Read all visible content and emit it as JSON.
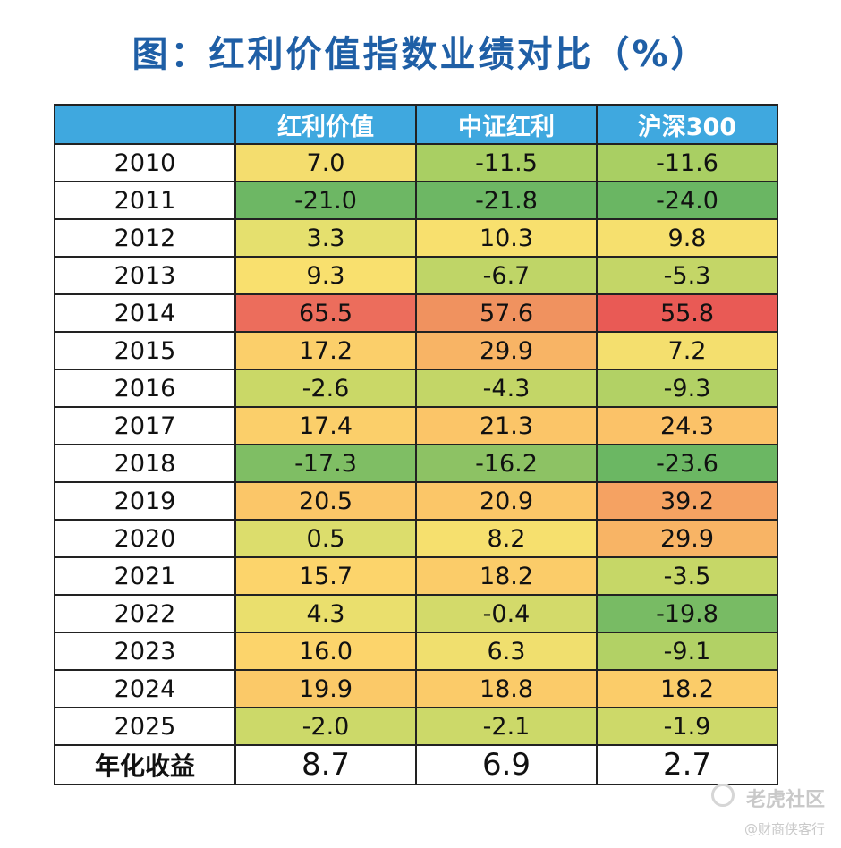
{
  "chart_data": {
    "type": "table",
    "title": "图：红利价值指数业绩对比（%）",
    "columns": [
      "",
      "红利价值",
      "中证红利",
      "沪深300"
    ],
    "rows": [
      {
        "year": "2010",
        "values": [
          "7.0",
          "-11.5",
          "-11.6"
        ],
        "colors": [
          "#f4dd6e",
          "#a9cf63",
          "#a9cf63"
        ]
      },
      {
        "year": "2011",
        "values": [
          "-21.0",
          "-21.8",
          "-24.0"
        ],
        "colors": [
          "#6db764",
          "#6db764",
          "#6ab663"
        ]
      },
      {
        "year": "2012",
        "values": [
          "3.3",
          "10.3",
          "9.8"
        ],
        "colors": [
          "#e5e06e",
          "#f8e06e",
          "#f6e06e"
        ]
      },
      {
        "year": "2013",
        "values": [
          "9.3",
          "-6.7",
          "-5.3"
        ],
        "colors": [
          "#f9e06e",
          "#bfd567",
          "#c4d667"
        ]
      },
      {
        "year": "2014",
        "values": [
          "65.5",
          "57.6",
          "55.8"
        ],
        "colors": [
          "#ec6d5c",
          "#f0925f",
          "#e95a55"
        ]
      },
      {
        "year": "2015",
        "values": [
          "17.2",
          "29.9",
          "7.2"
        ],
        "colors": [
          "#fbcf6a",
          "#f8b465",
          "#f4df6e"
        ]
      },
      {
        "year": "2016",
        "values": [
          "-2.6",
          "-4.3",
          "-9.3"
        ],
        "colors": [
          "#cad867",
          "#c3d667",
          "#b2d165"
        ]
      },
      {
        "year": "2017",
        "values": [
          "17.4",
          "21.3",
          "24.3"
        ],
        "colors": [
          "#fbcf6a",
          "#fbc568",
          "#fbc268"
        ]
      },
      {
        "year": "2018",
        "values": [
          "-17.3",
          "-16.2",
          "-23.6"
        ],
        "colors": [
          "#7fbe64",
          "#8dc264",
          "#6bb763"
        ]
      },
      {
        "year": "2019",
        "values": [
          "20.5",
          "20.9",
          "39.2"
        ],
        "colors": [
          "#fbc668",
          "#fbc668",
          "#f5a262"
        ]
      },
      {
        "year": "2020",
        "values": [
          "0.5",
          "8.2",
          "29.9"
        ],
        "colors": [
          "#dcdd6c",
          "#f6e06e",
          "#f8b465"
        ]
      },
      {
        "year": "2021",
        "values": [
          "15.7",
          "18.2",
          "-3.5"
        ],
        "colors": [
          "#fcd46b",
          "#fbcc69",
          "#c6d767"
        ]
      },
      {
        "year": "2022",
        "values": [
          "4.3",
          "-0.4",
          "-19.8"
        ],
        "colors": [
          "#eadf6d",
          "#d3da6a",
          "#78bb64"
        ]
      },
      {
        "year": "2023",
        "values": [
          "16.0",
          "6.3",
          "-9.1"
        ],
        "colors": [
          "#fcd46b",
          "#f0df6e",
          "#b2d165"
        ]
      },
      {
        "year": "2024",
        "values": [
          "19.9",
          "18.8",
          "18.2"
        ],
        "colors": [
          "#fbc968",
          "#fbcb69",
          "#fbcc69"
        ]
      },
      {
        "year": "2025",
        "values": [
          "-2.0",
          "-2.1",
          "-1.9"
        ],
        "colors": [
          "#ccd969",
          "#ccd969",
          "#cdd969"
        ]
      }
    ],
    "footer": {
      "label": "年化收益",
      "values": [
        "8.7",
        "6.9",
        "2.7"
      ]
    }
  },
  "watermark": {
    "line1": "老虎社区",
    "line2": "@财商侠客行"
  }
}
